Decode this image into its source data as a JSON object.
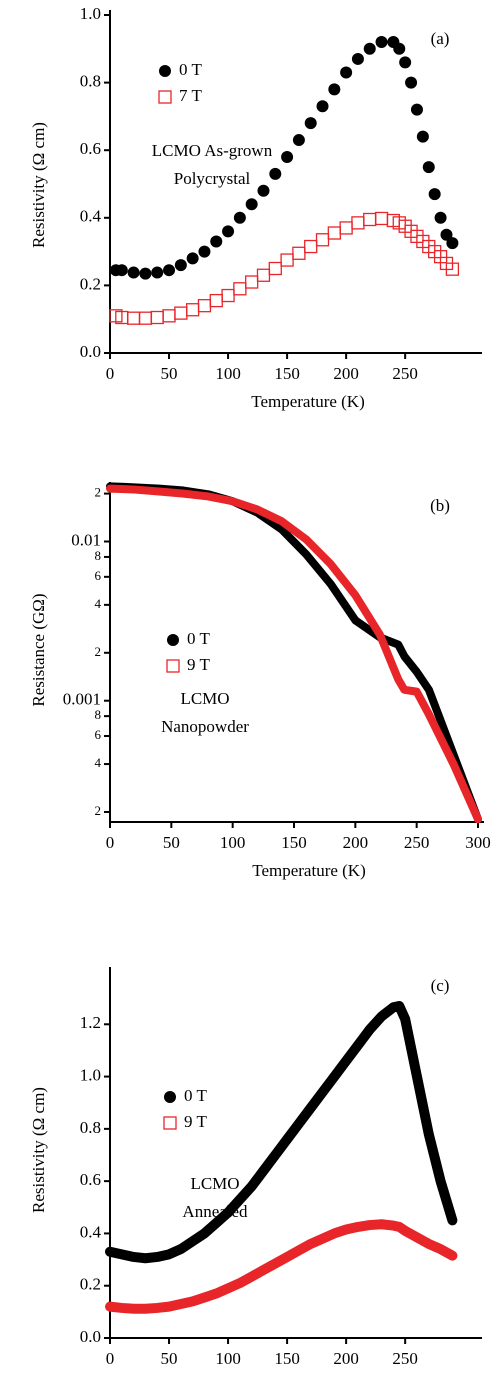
{
  "chart_data": [
    {
      "type": "scatter",
      "panel_label": "(a)",
      "xlabel": "Temperature (K)",
      "ylabel": "Resistivity (Ω cm)",
      "annotations": [
        "LCMO As-grown",
        "Polycrystal"
      ],
      "xlim": [
        0,
        310
      ],
      "xticks": [
        0,
        50,
        100,
        150,
        200,
        250
      ],
      "ylim": [
        0,
        1.0
      ],
      "yticks": [
        {
          "value": 0,
          "label": "0.0"
        },
        0.2,
        0.4,
        0.6,
        0.8,
        {
          "value": 1,
          "label": "1.0"
        }
      ],
      "x": [
        5,
        10,
        20,
        30,
        40,
        50,
        60,
        70,
        80,
        90,
        100,
        110,
        120,
        130,
        140,
        150,
        160,
        170,
        180,
        190,
        200,
        210,
        220,
        230,
        240,
        245,
        250,
        255,
        260,
        265,
        270,
        275,
        280,
        285,
        290
      ],
      "series": [
        {
          "name": "0 T",
          "color": "#000000",
          "marker": "filled-circle",
          "style": "markers",
          "values": [
            0.245,
            0.245,
            0.238,
            0.235,
            0.238,
            0.245,
            0.26,
            0.28,
            0.3,
            0.33,
            0.36,
            0.4,
            0.44,
            0.48,
            0.53,
            0.58,
            0.63,
            0.68,
            0.73,
            0.78,
            0.83,
            0.87,
            0.9,
            0.92,
            0.92,
            0.9,
            0.86,
            0.8,
            0.72,
            0.64,
            0.55,
            0.47,
            0.4,
            0.35,
            0.325
          ]
        },
        {
          "name": "7 T",
          "color": "#e8262a",
          "marker": "open-square",
          "style": "markers",
          "values": [
            0.11,
            0.105,
            0.103,
            0.103,
            0.105,
            0.11,
            0.118,
            0.128,
            0.14,
            0.155,
            0.17,
            0.19,
            0.21,
            0.23,
            0.25,
            0.275,
            0.295,
            0.315,
            0.335,
            0.355,
            0.37,
            0.385,
            0.395,
            0.398,
            0.392,
            0.385,
            0.375,
            0.36,
            0.345,
            0.33,
            0.315,
            0.3,
            0.285,
            0.265,
            0.248
          ]
        }
      ]
    },
    {
      "type": "line",
      "panel_label": "(b)",
      "xlabel": "Temperature (K)",
      "ylabel": "Resistance (GΩ)",
      "log_y": true,
      "annotations": [
        "LCMO",
        "Nanopowder"
      ],
      "xlim": [
        0,
        300
      ],
      "xticks": [
        0,
        50,
        100,
        150,
        200,
        250,
        300
      ],
      "ylim": [
        0.000173,
        0.022
      ],
      "yticks": [
        {
          "value": 0.0002,
          "label": "2"
        },
        {
          "value": 0.0004,
          "label": "4"
        },
        {
          "value": 0.0006,
          "label": "6"
        },
        {
          "value": 0.0008,
          "label": "8"
        },
        0.001,
        {
          "value": 0.002,
          "label": "2"
        },
        {
          "value": 0.004,
          "label": "4"
        },
        {
          "value": 0.006,
          "label": "6"
        },
        {
          "value": 0.008,
          "label": "8"
        },
        0.01,
        {
          "value": 0.02,
          "label": "2"
        }
      ],
      "x": [
        0,
        20,
        40,
        60,
        80,
        100,
        120,
        140,
        160,
        180,
        200,
        220,
        235,
        240,
        250,
        260,
        280,
        300
      ],
      "series": [
        {
          "name": "0 T",
          "color": "#000000",
          "marker": "filled-circle",
          "style": "line",
          "values": [
            0.0222,
            0.0219,
            0.0215,
            0.0209,
            0.0198,
            0.0179,
            0.0152,
            0.0119,
            0.0083,
            0.0054,
            0.0032,
            0.0025,
            0.00225,
            0.0019,
            0.00152,
            0.00117,
            0.00046,
            0.00018
          ]
        },
        {
          "name": "9 T",
          "color": "#e8262a",
          "marker": "open-square",
          "style": "line",
          "values": [
            0.0215,
            0.0212,
            0.0206,
            0.02,
            0.0192,
            0.0179,
            0.0159,
            0.0134,
            0.0103,
            0.0072,
            0.0046,
            0.0026,
            0.00136,
            0.00117,
            0.00114,
            0.00082,
            0.0004,
            0.00018
          ]
        }
      ]
    },
    {
      "type": "line",
      "panel_label": "(c)",
      "xlabel": "Temperature (K)",
      "ylabel": "Resistivity (Ω cm)",
      "annotations": [
        "LCMO",
        "Annealed"
      ],
      "xlim": [
        0,
        310
      ],
      "xticks": [
        0,
        50,
        100,
        150,
        200,
        250
      ],
      "ylim": [
        0,
        1.4
      ],
      "yticks": [
        {
          "value": 0,
          "label": "0.0"
        },
        0.2,
        0.4,
        0.6,
        0.8,
        {
          "value": 1,
          "label": "1.0"
        },
        1.2
      ],
      "x": [
        0,
        10,
        20,
        30,
        40,
        50,
        60,
        70,
        80,
        90,
        100,
        110,
        120,
        130,
        140,
        150,
        160,
        170,
        180,
        190,
        200,
        210,
        220,
        230,
        240,
        245,
        250,
        260,
        270,
        280,
        290
      ],
      "series": [
        {
          "name": "0 T",
          "color": "#000000",
          "marker": "filled-circle",
          "style": "line",
          "values": [
            0.33,
            0.32,
            0.31,
            0.305,
            0.31,
            0.32,
            0.34,
            0.37,
            0.4,
            0.44,
            0.48,
            0.53,
            0.58,
            0.64,
            0.7,
            0.76,
            0.82,
            0.88,
            0.94,
            1.0,
            1.06,
            1.12,
            1.18,
            1.23,
            1.265,
            1.27,
            1.22,
            1.0,
            0.78,
            0.6,
            0.45
          ]
        },
        {
          "name": "9 T",
          "color": "#e8262a",
          "marker": "open-square",
          "style": "line",
          "values": [
            0.12,
            0.115,
            0.112,
            0.112,
            0.115,
            0.12,
            0.13,
            0.14,
            0.155,
            0.17,
            0.19,
            0.21,
            0.235,
            0.26,
            0.285,
            0.31,
            0.335,
            0.36,
            0.38,
            0.4,
            0.415,
            0.425,
            0.432,
            0.435,
            0.43,
            0.425,
            0.41,
            0.385,
            0.36,
            0.34,
            0.315
          ]
        }
      ]
    }
  ]
}
